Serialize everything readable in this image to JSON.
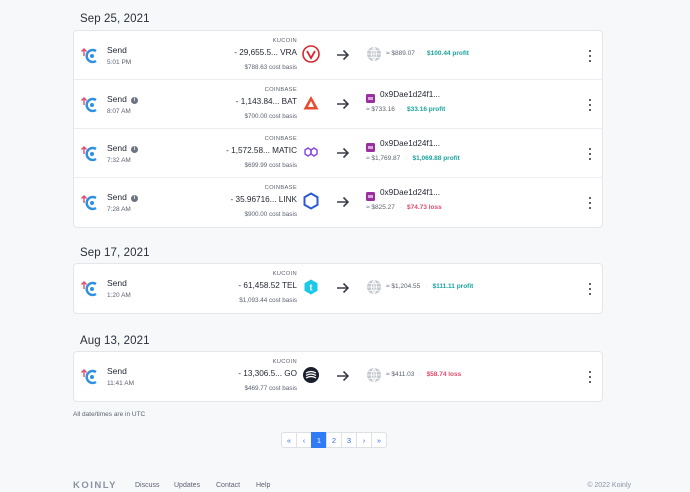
{
  "groups": [
    {
      "date": "Sep 25, 2021",
      "rows": [
        {
          "type": "Send",
          "info": false,
          "time": "5:01 PM",
          "exchange": "KUCOIN",
          "amount": "- 29,655.5... VRA",
          "cost_basis": "$788.63 cost basis",
          "coin_icon": "vra-coin-icon",
          "coin_color": "#d8262e",
          "dest": "globe",
          "dest_value": "≈ $889.07",
          "pl_text": "$100.44 profit",
          "pl_kind": "profit"
        },
        {
          "type": "Send",
          "info": true,
          "time": "8:07 AM",
          "exchange": "COINBASE",
          "amount": "- 1,143.84... BAT",
          "cost_basis": "$700.00 cost basis",
          "coin_icon": "bat-coin-icon",
          "coin_color": "#e84b2e",
          "dest": "wallet",
          "wallet": "0x9Dae1d24f1...",
          "dest_value": "≈ $733.16",
          "pl_text": "$33.16 profit",
          "pl_kind": "profit"
        },
        {
          "type": "Send",
          "info": true,
          "time": "7:32 AM",
          "exchange": "COINBASE",
          "amount": "- 1,572.58... MATIC",
          "cost_basis": "$699.99 cost basis",
          "coin_icon": "matic-coin-icon",
          "coin_color": "#8247e5",
          "dest": "wallet",
          "wallet": "0x9Dae1d24f1...",
          "dest_value": "≈ $1,769.87",
          "pl_text": "$1,069.88 profit",
          "pl_kind": "profit"
        },
        {
          "type": "Send",
          "info": true,
          "time": "7:28 AM",
          "exchange": "COINBASE",
          "amount": "- 35.96716... LINK",
          "cost_basis": "$900.00 cost basis",
          "coin_icon": "link-coin-icon",
          "coin_color": "#2a5ada",
          "dest": "wallet",
          "wallet": "0x9Dae1d24f1...",
          "dest_value": "≈ $825.27",
          "pl_text": "$74.73 loss",
          "pl_kind": "loss"
        }
      ]
    },
    {
      "date": "Sep 17, 2021",
      "rows": [
        {
          "type": "Send",
          "info": false,
          "time": "1:20 AM",
          "exchange": "KUCOIN",
          "amount": "- 61,458.52 TEL",
          "cost_basis": "$1,093.44 cost basis",
          "coin_icon": "tel-coin-icon",
          "coin_color": "#1bc8e8",
          "dest": "globe",
          "dest_value": "≈ $1,204.55",
          "pl_text": "$111.11 profit",
          "pl_kind": "profit"
        }
      ]
    },
    {
      "date": "Aug 13, 2021",
      "rows": [
        {
          "type": "Send",
          "info": false,
          "time": "11:41 AM",
          "exchange": "KUCOIN",
          "amount": "- 13,306.5... GO",
          "cost_basis": "$469.77 cost basis",
          "coin_icon": "go-coin-icon",
          "coin_color": "#1a1f2e",
          "dest": "globe",
          "dest_value": "≈ $411.03",
          "pl_text": "$58.74 loss",
          "pl_kind": "loss"
        }
      ]
    }
  ],
  "timezone_note": "All date/times are in UTC",
  "pagination": {
    "buttons": [
      "«",
      "‹",
      "1",
      "2",
      "3",
      "›",
      "»"
    ],
    "active": "1"
  },
  "footer": {
    "logo": "KOINLY",
    "links": [
      "Discuss",
      "Updates",
      "Contact",
      "Help"
    ],
    "copyright": "© 2022 Koinly"
  },
  "colors": {
    "profit": "#1ba39c",
    "loss": "#e34a6a",
    "accent": "#2f7cf6"
  }
}
